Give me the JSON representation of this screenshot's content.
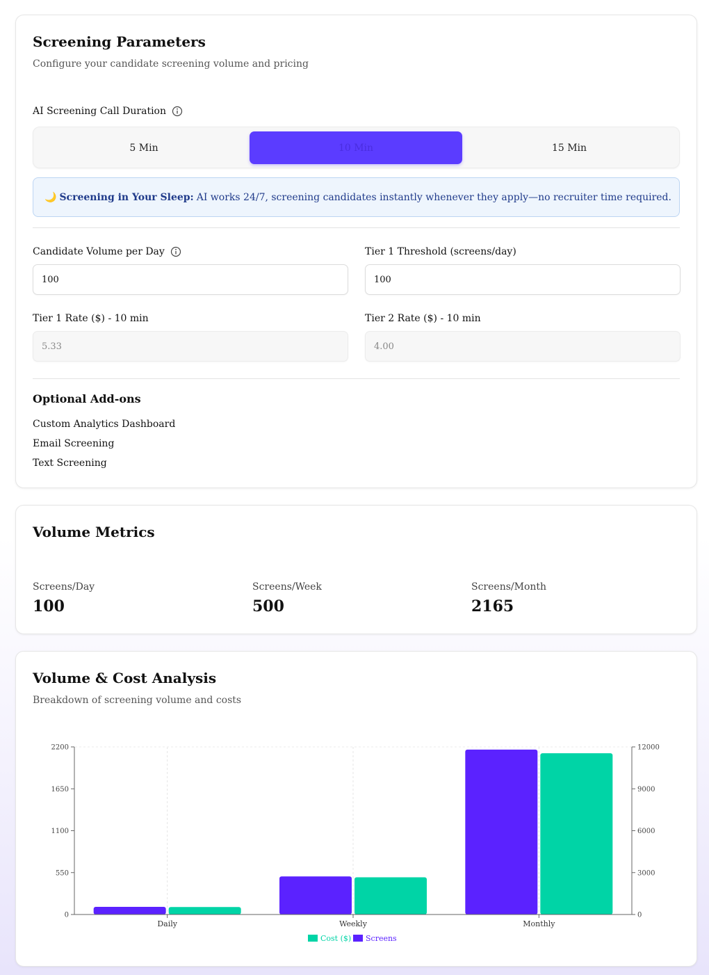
{
  "params": {
    "title": "Screening Parameters",
    "subtitle": "Configure your candidate screening volume and pricing",
    "duration_label": "AI Screening Call Duration",
    "durations": [
      "5 Min",
      "10 Min",
      "15 Min"
    ],
    "selected_duration": "10 Min",
    "banner_emoji": "🌙",
    "banner_bold": "Screening in Your Sleep:",
    "banner_text": "AI works 24/7, screening candidates instantly whenever they apply—no recruiter time required.",
    "volume_label": "Candidate Volume per Day",
    "volume_value": "100",
    "threshold_label": "Tier 1 Threshold (screens/day)",
    "threshold_value": "100",
    "tier1_label": "Tier 1 Rate ($) - 10 min",
    "tier1_value": "5.33",
    "tier2_label": "Tier 2 Rate ($) - 10 min",
    "tier2_value": "4.00",
    "addons_title": "Optional Add-ons",
    "addons": [
      "Custom Analytics Dashboard",
      "Email Screening",
      "Text Screening"
    ]
  },
  "metrics": {
    "title": "Volume Metrics",
    "items": [
      {
        "label": "Screens/Day",
        "value": "100"
      },
      {
        "label": "Screens/Week",
        "value": "500"
      },
      {
        "label": "Screens/Month",
        "value": "2165"
      }
    ]
  },
  "analysis": {
    "title": "Volume & Cost Analysis",
    "subtitle": "Breakdown of screening volume and costs"
  },
  "colors": {
    "screens": "#5b22ff",
    "cost": "#00d4a6",
    "accent": "#5b3cff"
  },
  "chart_data": {
    "type": "bar",
    "categories": [
      "Daily",
      "Weekly",
      "Monthly"
    ],
    "series": [
      {
        "name": "Screens",
        "values": [
          100,
          500,
          2165
        ],
        "axis": "left"
      },
      {
        "name": "Cost ($)",
        "values": [
          533,
          2665,
          11545
        ],
        "axis": "right"
      }
    ],
    "left_axis": {
      "ticks": [
        0,
        550,
        1100,
        1650,
        2200
      ],
      "ylim": [
        0,
        2200
      ]
    },
    "right_axis": {
      "ticks": [
        0,
        3000,
        6000,
        9000,
        12000
      ],
      "ylim": [
        0,
        12000
      ]
    },
    "legend": [
      "Cost ($)",
      "Screens"
    ],
    "legend_placement": "bottom-center",
    "grid": "vertical dashed"
  }
}
